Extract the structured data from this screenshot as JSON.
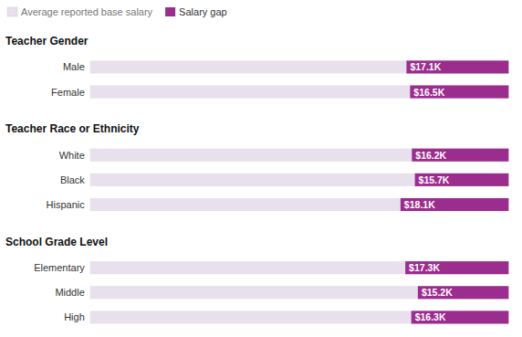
{
  "chart_data": {
    "type": "bar",
    "orientation": "horizontal",
    "xlim": [
      0,
      70
    ],
    "tick_labels": false,
    "data_labels": true,
    "legend": "top-left",
    "series": [
      {
        "name": "Average reported base salary",
        "color": "#e8e0ec"
      },
      {
        "name": "Salary gap",
        "color": "#9b2d8e"
      }
    ],
    "sections": [
      {
        "title": "Teacher Gender",
        "categories": [
          "Male",
          "Female"
        ],
        "values": [
          17.1,
          16.5
        ],
        "value_labels": [
          "$17.1K",
          "$16.5K"
        ]
      },
      {
        "title": "Teacher Race or Ethnicity",
        "categories": [
          "White",
          "Black",
          "Hispanic"
        ],
        "values": [
          16.2,
          15.7,
          18.1
        ],
        "value_labels": [
          "$16.2K",
          "$15.7K",
          "$18.1K"
        ]
      },
      {
        "title": "School Grade Level",
        "categories": [
          "Elementary",
          "Middle",
          "High"
        ],
        "values": [
          17.3,
          15.2,
          16.3
        ],
        "value_labels": [
          "$17.3K",
          "$15.2K",
          "$16.3K"
        ]
      }
    ]
  }
}
